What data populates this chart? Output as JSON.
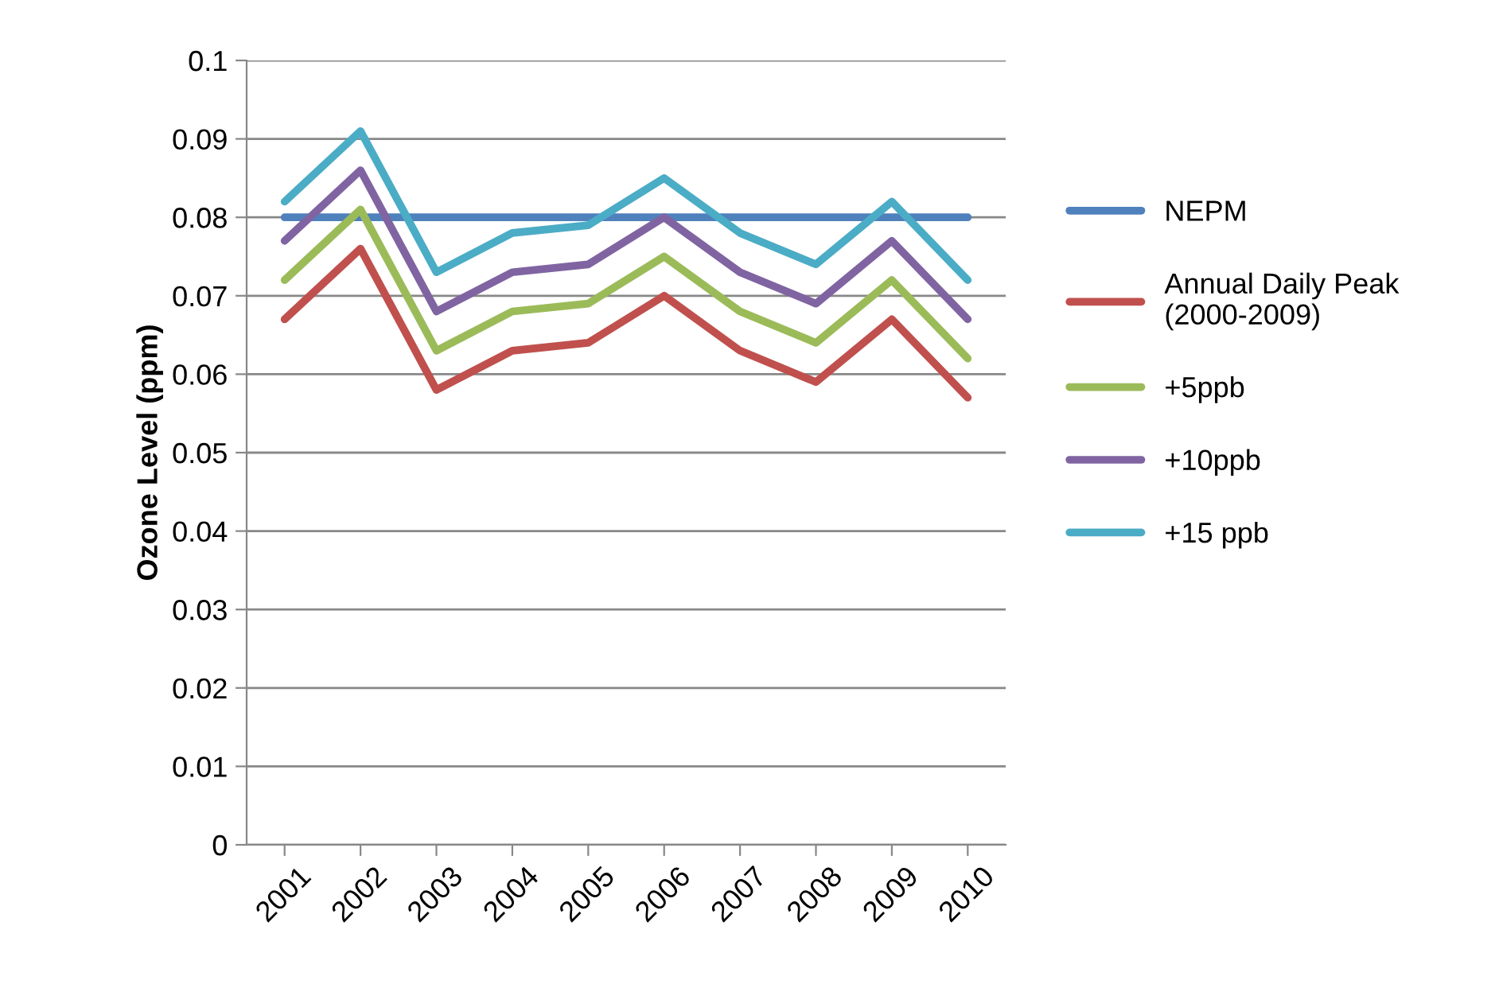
{
  "chart_data": {
    "type": "line",
    "ylabel": "Ozone Level (ppm)",
    "categories": [
      "2001",
      "2002",
      "2003",
      "2004",
      "2005",
      "2006",
      "2007",
      "2008",
      "2009",
      "2010"
    ],
    "series": [
      {
        "name": "NEPM",
        "color": "#4f81bd",
        "values": [
          0.08,
          0.08,
          0.08,
          0.08,
          0.08,
          0.08,
          0.08,
          0.08,
          0.08,
          0.08
        ]
      },
      {
        "name": "Annual Daily Peak\n(2000-2009)",
        "color": "#c0504d",
        "values": [
          0.067,
          0.076,
          0.058,
          0.063,
          0.064,
          0.07,
          0.063,
          0.059,
          0.067,
          0.057
        ]
      },
      {
        "name": "+5ppb",
        "color": "#9bbb59",
        "values": [
          0.072,
          0.081,
          0.063,
          0.068,
          0.069,
          0.075,
          0.068,
          0.064,
          0.072,
          0.062
        ]
      },
      {
        "name": "+10ppb",
        "color": "#8064a2",
        "values": [
          0.077,
          0.086,
          0.068,
          0.073,
          0.074,
          0.08,
          0.073,
          0.069,
          0.077,
          0.067
        ]
      },
      {
        "name": "+15 ppb",
        "color": "#4bacc6",
        "values": [
          0.082,
          0.091,
          0.073,
          0.078,
          0.079,
          0.085,
          0.078,
          0.074,
          0.082,
          0.072
        ]
      }
    ],
    "ylim": [
      0,
      0.1
    ],
    "yticks": [
      0,
      0.01,
      0.02,
      0.03,
      0.04,
      0.05,
      0.06,
      0.07,
      0.08,
      0.09,
      0.1
    ],
    "grid": "y",
    "legend": "right",
    "marker": "none",
    "line_style": "solid"
  }
}
